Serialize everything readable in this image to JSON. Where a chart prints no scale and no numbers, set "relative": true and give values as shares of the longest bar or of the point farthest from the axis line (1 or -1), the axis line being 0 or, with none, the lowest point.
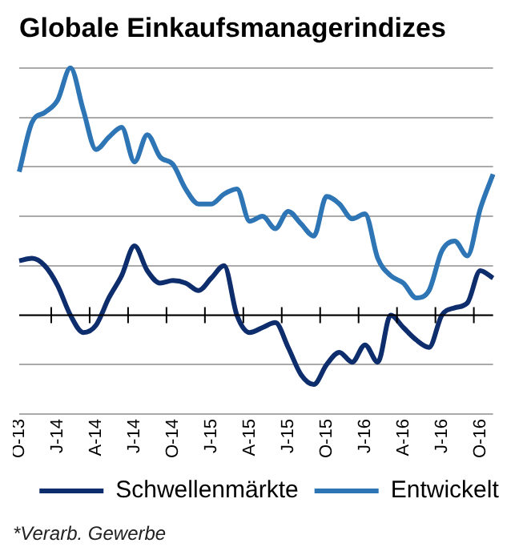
{
  "chart_data": {
    "type": "line",
    "title": "Globale Einkaufsmanagerindizes",
    "relative": true,
    "grid": "y",
    "legend": "bottom",
    "marker": "none",
    "line_style": "solid",
    "categories": [
      "O-13",
      null,
      null,
      "J-14",
      null,
      null,
      "A-14",
      null,
      null,
      "J-14",
      null,
      null,
      "O-14",
      null,
      null,
      "J-15",
      null,
      null,
      "A-15",
      null,
      null,
      "J-15",
      null,
      null,
      "O-15",
      null,
      null,
      "J-16",
      null,
      null,
      "A-16",
      null,
      null,
      "J-16",
      null,
      null,
      "O-16",
      null
    ],
    "series": [
      {
        "name": "Schwellenmärkte",
        "color": "#0d2d6c",
        "values": [
          0.22,
          0.23,
          0.2,
          0.12,
          0.0,
          -0.07,
          -0.04,
          0.07,
          0.16,
          0.28,
          0.18,
          0.13,
          0.14,
          0.13,
          0.1,
          0.15,
          0.2,
          0.0,
          -0.07,
          -0.05,
          -0.03,
          -0.13,
          -0.24,
          -0.28,
          -0.2,
          -0.15,
          -0.19,
          -0.12,
          -0.19,
          0.0,
          -0.05,
          -0.1,
          -0.13,
          0.0,
          0.03,
          0.05,
          0.18,
          0.15
        ]
      },
      {
        "name": "Entwickelt",
        "color": "#2e75b6",
        "values": [
          0.58,
          0.78,
          0.82,
          0.87,
          1.0,
          0.83,
          0.67,
          0.72,
          0.76,
          0.62,
          0.73,
          0.64,
          0.61,
          0.51,
          0.45,
          0.45,
          0.49,
          0.51,
          0.38,
          0.4,
          0.35,
          0.42,
          0.37,
          0.32,
          0.48,
          0.45,
          0.39,
          0.41,
          0.23,
          0.16,
          0.13,
          0.07,
          0.1,
          0.26,
          0.3,
          0.24,
          0.43,
          0.57
        ]
      }
    ],
    "annotations": [
      "*Verarb. Gewerbe"
    ]
  }
}
